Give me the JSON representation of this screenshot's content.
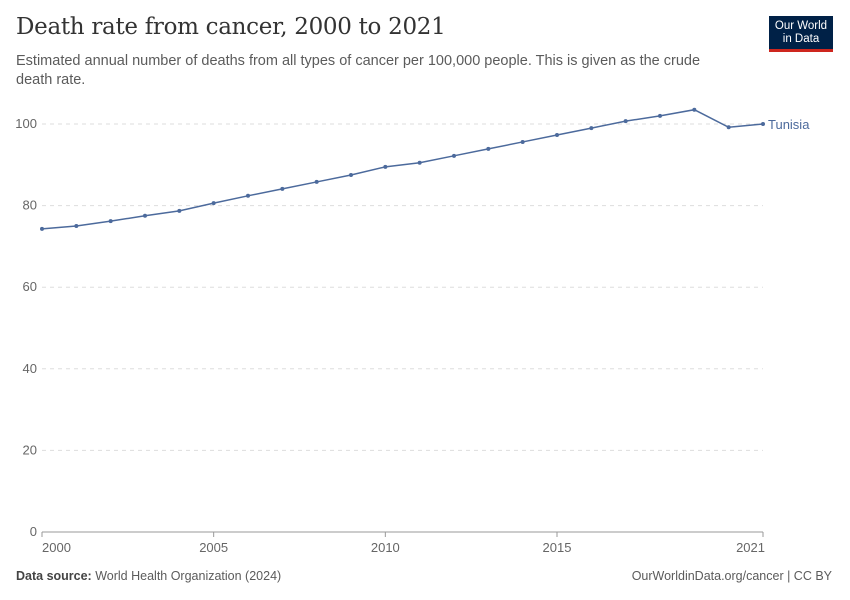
{
  "header": {
    "title": "Death rate from cancer, 2000 to 2021",
    "subtitle": "Estimated annual number of deaths from all types of cancer per 100,000 people. This is given as the crude death rate.",
    "logo_line1": "Our World",
    "logo_line2": "in Data"
  },
  "footer": {
    "source_label": "Data source:",
    "source_value": "World Health Organization (2024)",
    "credit": "OurWorldinData.org/cancer | CC BY"
  },
  "colors": {
    "series": "#4c6a9c",
    "grid": "#dddddd",
    "axis": "#666666",
    "logo_bg": "#002147",
    "logo_accent": "#ce261e"
  },
  "chart_data": {
    "type": "line",
    "title": "Death rate from cancer, 2000 to 2021",
    "xlim": [
      2000,
      2021
    ],
    "ylim": [
      0,
      100
    ],
    "x_ticks": [
      "2000",
      "2005",
      "2010",
      "2015",
      "2021"
    ],
    "y_ticks": [
      "0",
      "20",
      "40",
      "60",
      "80",
      "100"
    ],
    "grid": "horizontal dashed",
    "series": [
      {
        "name": "Tunisia",
        "x": [
          2000,
          2001,
          2002,
          2003,
          2004,
          2005,
          2006,
          2007,
          2008,
          2009,
          2010,
          2011,
          2012,
          2013,
          2014,
          2015,
          2016,
          2017,
          2018,
          2019,
          2020,
          2021
        ],
        "values": [
          74.3,
          75.0,
          76.2,
          77.5,
          78.7,
          80.6,
          82.4,
          84.1,
          85.8,
          87.5,
          89.5,
          90.5,
          92.2,
          93.9,
          95.6,
          97.3,
          99.0,
          100.7,
          102.0,
          103.5,
          99.2,
          100.0
        ]
      }
    ]
  }
}
